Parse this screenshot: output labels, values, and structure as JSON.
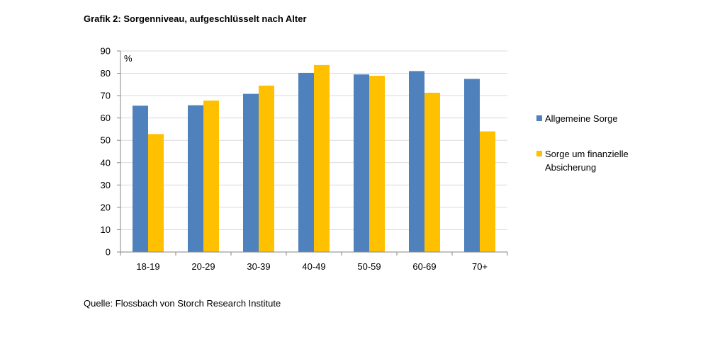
{
  "page": {
    "title": "Grafik 2: Sorgenniveau, aufgeschlüsselt nach Alter",
    "source": "Quelle: Flossbach von Storch Research Institute"
  },
  "chart_data": {
    "type": "bar",
    "ylabel": "%",
    "xlabel": "",
    "ylim": [
      0,
      90
    ],
    "yticks": [
      0,
      10,
      20,
      30,
      40,
      50,
      60,
      70,
      80,
      90
    ],
    "grid": true,
    "legend_position": "right",
    "categories": [
      "18-19",
      "20-29",
      "30-39",
      "40-49",
      "50-59",
      "60-69",
      "70+"
    ],
    "series": [
      {
        "name": "Allgemeine Sorge",
        "legend_lines": [
          "Allgemeine Sorge"
        ],
        "color": "#4f81bd",
        "values": [
          65.5,
          65.7,
          70.8,
          80.2,
          79.5,
          81,
          77.5
        ]
      },
      {
        "name": "Sorge um finanzielle Absicherung",
        "legend_lines": [
          "Sorge um finanzielle",
          "Absicherung"
        ],
        "color": "#ffc000",
        "values": [
          52.8,
          67.8,
          74.5,
          83.7,
          78.9,
          71.3,
          54
        ]
      }
    ]
  }
}
